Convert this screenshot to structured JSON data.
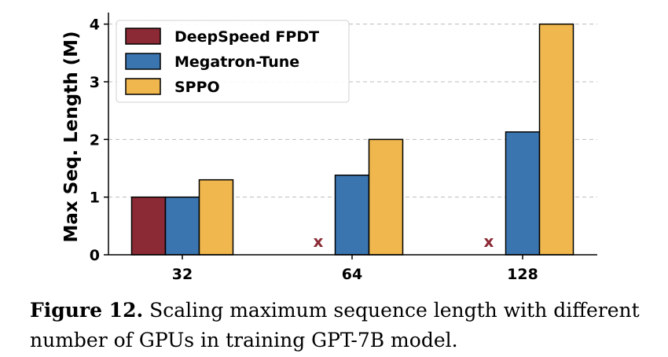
{
  "chart_data": {
    "type": "bar",
    "categories": [
      "32",
      "64",
      "128"
    ],
    "series": [
      {
        "name": "DeepSpeed FPDT",
        "values": [
          1.0,
          0,
          0
        ],
        "color": "#8b2a35"
      },
      {
        "name": "Megatron-Tune",
        "values": [
          1.0,
          1.38,
          2.13
        ],
        "color": "#3b75af"
      },
      {
        "name": "SPPO",
        "values": [
          1.3,
          2.0,
          4.0
        ],
        "color": "#efb74d"
      }
    ],
    "ylabel": "Max Seq. Length (M)",
    "ylim": [
      0,
      4.2
    ],
    "yticks": [
      0,
      1,
      2,
      3,
      4
    ],
    "grid": "horizontal dashed",
    "legend_position": "top-left",
    "annotations": [
      {
        "category": "64",
        "series": "DeepSpeed FPDT",
        "text": "x"
      },
      {
        "category": "128",
        "series": "DeepSpeed FPDT",
        "text": "x"
      }
    ],
    "annotation_color": "#8b2a35"
  },
  "caption": {
    "label": "Figure 12.",
    "text": " Scaling maximum sequence length with different number of GPUs in training GPT-7B model."
  }
}
